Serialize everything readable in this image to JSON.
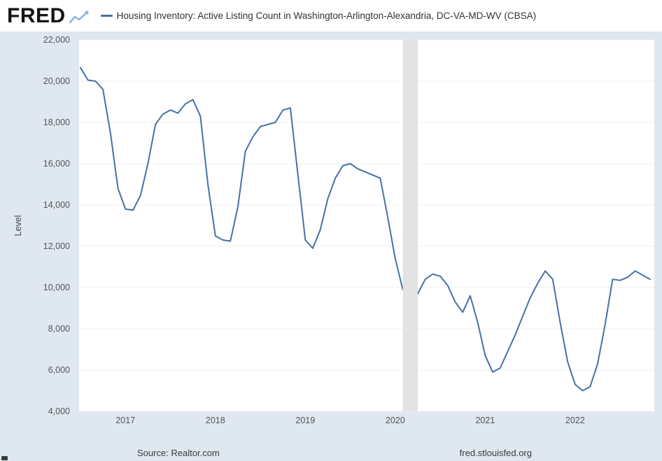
{
  "header": {
    "logo_text": "FRED",
    "legend_label": "Housing Inventory: Active Listing Count in Washington-Arlington-Alexandria, DC-VA-MD-WV (CBSA)"
  },
  "footer": {
    "source": "Source: Realtor.com",
    "site": "fred.stlouisfed.org"
  },
  "colors": {
    "line": "#4572a7",
    "page_background": "#dfe7f0",
    "plot_background": "#ffffff",
    "recession_band": "#e3e3e4",
    "gridline": "#efefef",
    "tick_text": "#555555",
    "logo_icon": "#8fb4d9"
  },
  "chart_data": {
    "type": "line",
    "title": "Housing Inventory: Active Listing Count in Washington-Arlington-Alexandria, DC-VA-MD-WV (CBSA)",
    "ylabel": "Level",
    "xlabel": "",
    "ylim": [
      4000,
      22000
    ],
    "grid": "faint-horizontal",
    "legend_position": "top-left",
    "frequency": "monthly",
    "recession_shading": {
      "start": "2020-02",
      "end": "2020-04"
    },
    "y_ticks": [
      {
        "value": 4000,
        "label": "4,000"
      },
      {
        "value": 6000,
        "label": "6,000"
      },
      {
        "value": 8000,
        "label": "8,000"
      },
      {
        "value": 10000,
        "label": "10,000"
      },
      {
        "value": 12000,
        "label": "12,000"
      },
      {
        "value": 14000,
        "label": "14,000"
      },
      {
        "value": 16000,
        "label": "16,000"
      },
      {
        "value": 18000,
        "label": "18,000"
      },
      {
        "value": 20000,
        "label": "20,000"
      },
      {
        "value": 22000,
        "label": "22,000"
      }
    ],
    "x_ticks": [
      {
        "month": "2017-01",
        "label": "2017"
      },
      {
        "month": "2018-01",
        "label": "2018"
      },
      {
        "month": "2019-01",
        "label": "2019"
      },
      {
        "month": "2020-01",
        "label": "2020"
      },
      {
        "month": "2021-01",
        "label": "2021"
      },
      {
        "month": "2022-01",
        "label": "2022"
      }
    ],
    "x": [
      "2016-07",
      "2016-08",
      "2016-09",
      "2016-10",
      "2016-11",
      "2016-12",
      "2017-01",
      "2017-02",
      "2017-03",
      "2017-04",
      "2017-05",
      "2017-06",
      "2017-07",
      "2017-08",
      "2017-09",
      "2017-10",
      "2017-11",
      "2017-12",
      "2018-01",
      "2018-02",
      "2018-03",
      "2018-04",
      "2018-05",
      "2018-06",
      "2018-07",
      "2018-08",
      "2018-09",
      "2018-10",
      "2018-11",
      "2018-12",
      "2019-01",
      "2019-02",
      "2019-03",
      "2019-04",
      "2019-05",
      "2019-06",
      "2019-07",
      "2019-08",
      "2019-09",
      "2019-10",
      "2019-11",
      "2019-12",
      "2020-01",
      "2020-02",
      "2020-03",
      "2020-04",
      "2020-05",
      "2020-06",
      "2020-07",
      "2020-08",
      "2020-09",
      "2020-10",
      "2020-11",
      "2020-12",
      "2021-01",
      "2021-02",
      "2021-03",
      "2021-04",
      "2021-05",
      "2021-06",
      "2021-07",
      "2021-08",
      "2021-09",
      "2021-10",
      "2021-11",
      "2021-12",
      "2022-01",
      "2022-02",
      "2022-03",
      "2022-04",
      "2022-05",
      "2022-06",
      "2022-07",
      "2022-08",
      "2022-09",
      "2022-10",
      "2022-11"
    ],
    "values": [
      20650,
      20050,
      20000,
      19600,
      17500,
      14800,
      13800,
      13750,
      14450,
      16000,
      17900,
      18400,
      18600,
      18450,
      18900,
      19100,
      18300,
      15000,
      12500,
      12300,
      12250,
      13900,
      16600,
      17300,
      17800,
      17900,
      18000,
      18600,
      18700,
      15500,
      12300,
      11900,
      12800,
      14300,
      15300,
      15900,
      16000,
      15750,
      15600,
      15450,
      15300,
      13400,
      11400,
      9900,
      9400,
      9700,
      10400,
      10650,
      10550,
      10100,
      9300,
      8800,
      9600,
      8300,
      6700,
      5900,
      6100,
      6900,
      7700,
      8600,
      9500,
      10200,
      10800,
      10400,
      8300,
      6400,
      5300,
      5000,
      5200,
      6300,
      8200,
      10400,
      10350,
      10500,
      10800,
      10600,
      10400
    ]
  }
}
